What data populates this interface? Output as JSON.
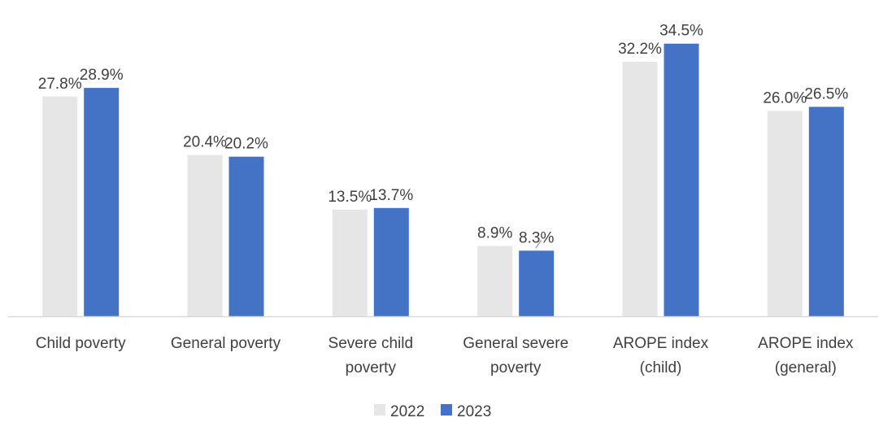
{
  "chart_data": {
    "type": "bar",
    "categories": [
      [
        "Child poverty"
      ],
      [
        "General poverty"
      ],
      [
        "Severe child",
        "poverty"
      ],
      [
        "General severe",
        "poverty"
      ],
      [
        "AROPE index",
        "(child)"
      ],
      [
        "AROPE index",
        "(general)"
      ]
    ],
    "series": [
      {
        "name": "2022",
        "color": "#e7e6e6",
        "values": [
          27.8,
          20.4,
          13.5,
          8.9,
          32.2,
          26.0
        ],
        "labels": [
          "27.8%",
          "20.4%",
          "13.5%",
          "8.9%",
          "32.2%",
          "26.0%"
        ]
      },
      {
        "name": "2023",
        "color": "#4472c4",
        "values": [
          28.9,
          20.2,
          13.7,
          8.3,
          34.5,
          26.5
        ],
        "labels": [
          "28.9%",
          "20.2%",
          "13.7%",
          "8.3%",
          "34.5%",
          "26.5%"
        ]
      }
    ],
    "ylim": [
      0,
      37.5
    ],
    "grid": false,
    "legend_position": "bottom",
    "axis_color": "#d9d9d9",
    "text_color": "#404040"
  }
}
